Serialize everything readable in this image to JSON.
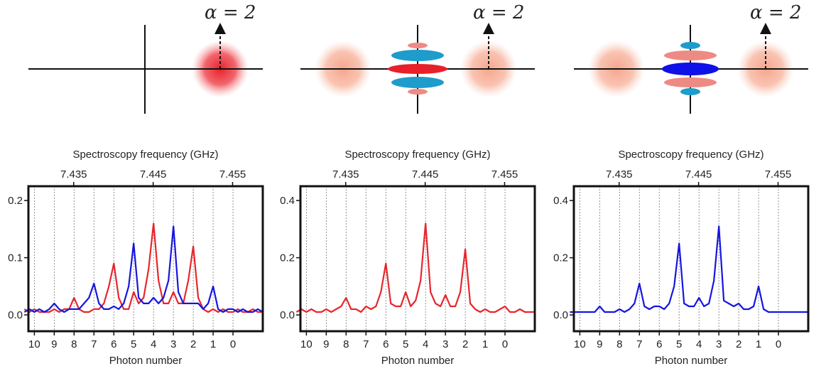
{
  "chart_data": [
    {
      "type": "line",
      "annotation": "α = 2",
      "x2label": "Spectroscopy frequency (GHz)",
      "xlabel": "Photon number",
      "x": [
        10.5,
        10.25,
        10,
        9.75,
        9.5,
        9.25,
        9,
        8.75,
        8.5,
        8.25,
        8,
        7.75,
        7.5,
        7.25,
        7,
        6.75,
        6.5,
        6.25,
        6,
        5.75,
        5.5,
        5.25,
        5,
        4.75,
        4.5,
        4.25,
        4,
        3.75,
        3.5,
        3.25,
        3,
        2.75,
        2.5,
        2.25,
        2,
        1.75,
        1.5,
        1.25,
        1,
        0.75,
        0.5,
        0.25,
        0,
        -0.25,
        -0.5,
        -0.75,
        -1,
        -1.25,
        -1.5
      ],
      "series": [
        {
          "color": "#e8262c",
          "values": [
            0.01,
            0.005,
            0.01,
            0.005,
            0.005,
            0.005,
            0.01,
            0.005,
            0.01,
            0.01,
            0.03,
            0.01,
            0.005,
            0.005,
            0.01,
            0.01,
            0.02,
            0.05,
            0.09,
            0.03,
            0.01,
            0.01,
            0.04,
            0.02,
            0.03,
            0.08,
            0.16,
            0.06,
            0.02,
            0.02,
            0.04,
            0.02,
            0.02,
            0.06,
            0.12,
            0.03,
            0.01,
            0.005,
            0.01,
            0.005,
            0.01,
            0.005,
            0.005,
            0.01,
            0.005,
            0.005,
            0.01,
            0.005,
            0.005
          ]
        },
        {
          "color": "#1515e0",
          "values": [
            0.005,
            0.01,
            0.005,
            0.01,
            0.005,
            0.01,
            0.02,
            0.01,
            0.005,
            0.01,
            0.01,
            0.01,
            0.02,
            0.03,
            0.055,
            0.02,
            0.01,
            0.01,
            0.015,
            0.01,
            0.02,
            0.05,
            0.125,
            0.03,
            0.02,
            0.02,
            0.03,
            0.02,
            0.03,
            0.06,
            0.155,
            0.04,
            0.02,
            0.02,
            0.02,
            0.02,
            0.01,
            0.02,
            0.05,
            0.01,
            0.005,
            0.01,
            0.01,
            0.005,
            0.01,
            0.005,
            0.005,
            0.01,
            0.005
          ]
        }
      ],
      "xlim": [
        10.3,
        -1.5
      ],
      "xticks": [
        10,
        9,
        8,
        7,
        6,
        5,
        4,
        3,
        2,
        1,
        0
      ],
      "grid": true,
      "x2lim": [
        7.4293,
        7.4588
      ],
      "x2ticks": [
        7.435,
        7.445,
        7.455
      ],
      "ylim": [
        -0.0286,
        0.225
      ],
      "yticks": [
        {
          "value": 0,
          "label": "0.0"
        },
        0.1,
        0.2
      ]
    },
    {
      "type": "line",
      "annotation": "α = 2",
      "x2label": "Spectroscopy frequency (GHz)",
      "xlabel": "Photon number",
      "x": [
        10.5,
        10.25,
        10,
        9.75,
        9.5,
        9.25,
        9,
        8.75,
        8.5,
        8.25,
        8,
        7.75,
        7.5,
        7.25,
        7,
        6.75,
        6.5,
        6.25,
        6,
        5.75,
        5.5,
        5.25,
        5,
        4.75,
        4.5,
        4.25,
        4,
        3.75,
        3.5,
        3.25,
        3,
        2.75,
        2.5,
        2.25,
        2,
        1.75,
        1.5,
        1.25,
        1,
        0.75,
        0.5,
        0.25,
        0,
        -0.25,
        -0.5,
        -0.75,
        -1,
        -1.25,
        -1.5
      ],
      "series": [
        {
          "color": "#e8262c",
          "values": [
            0.01,
            0.02,
            0.01,
            0.02,
            0.01,
            0.01,
            0.02,
            0.01,
            0.02,
            0.03,
            0.06,
            0.02,
            0.02,
            0.01,
            0.03,
            0.02,
            0.03,
            0.08,
            0.18,
            0.04,
            0.03,
            0.03,
            0.08,
            0.03,
            0.05,
            0.12,
            0.32,
            0.08,
            0.04,
            0.03,
            0.07,
            0.03,
            0.03,
            0.08,
            0.23,
            0.04,
            0.02,
            0.01,
            0.02,
            0.01,
            0.01,
            0.02,
            0.03,
            0.01,
            0.01,
            0.02,
            0.01,
            0.01,
            0.01
          ]
        }
      ],
      "xlim": [
        10.3,
        -1.5
      ],
      "xticks": [
        10,
        9,
        8,
        7,
        6,
        5,
        4,
        3,
        2,
        1,
        0
      ],
      "grid": true,
      "x2lim": [
        7.4293,
        7.4588
      ],
      "x2ticks": [
        7.435,
        7.445,
        7.455
      ],
      "ylim": [
        -0.057,
        0.45
      ],
      "yticks": [
        {
          "value": 0,
          "label": "0.0"
        },
        0.2,
        0.4
      ]
    },
    {
      "type": "line",
      "annotation": "α = 2",
      "x2label": "Spectroscopy frequency (GHz)",
      "xlabel": "Photon number",
      "x": [
        10.5,
        10.25,
        10,
        9.75,
        9.5,
        9.25,
        9,
        8.75,
        8.5,
        8.25,
        8,
        7.75,
        7.5,
        7.25,
        7,
        6.75,
        6.5,
        6.25,
        6,
        5.75,
        5.5,
        5.25,
        5,
        4.75,
        4.5,
        4.25,
        4,
        3.75,
        3.5,
        3.25,
        3,
        2.75,
        2.5,
        2.25,
        2,
        1.75,
        1.5,
        1.25,
        1,
        0.75,
        0.5,
        0.25,
        0,
        -0.25,
        -0.5,
        -0.75,
        -1,
        -1.25,
        -1.5
      ],
      "series": [
        {
          "color": "#1515e0",
          "values": [
            0.01,
            0.01,
            0.01,
            0.01,
            0.01,
            0.01,
            0.03,
            0.01,
            0.01,
            0.01,
            0.02,
            0.01,
            0.02,
            0.04,
            0.11,
            0.03,
            0.02,
            0.03,
            0.03,
            0.02,
            0.04,
            0.1,
            0.25,
            0.04,
            0.03,
            0.03,
            0.06,
            0.03,
            0.04,
            0.12,
            0.31,
            0.05,
            0.04,
            0.03,
            0.04,
            0.02,
            0.02,
            0.03,
            0.1,
            0.02,
            0.01,
            0.01,
            0.01,
            0.01,
            0.01,
            0.01,
            0.01,
            0.01,
            0.01
          ]
        }
      ],
      "xlim": [
        10.3,
        -1.5
      ],
      "xticks": [
        10,
        9,
        8,
        7,
        6,
        5,
        4,
        3,
        2,
        1,
        0
      ],
      "grid": true,
      "x2lim": [
        7.4293,
        7.4588
      ],
      "x2ticks": [
        7.435,
        7.445,
        7.455
      ],
      "ylim": [
        -0.057,
        0.45
      ],
      "yticks": [
        {
          "value": 0,
          "label": "0.0"
        },
        0.2,
        0.4
      ]
    }
  ]
}
